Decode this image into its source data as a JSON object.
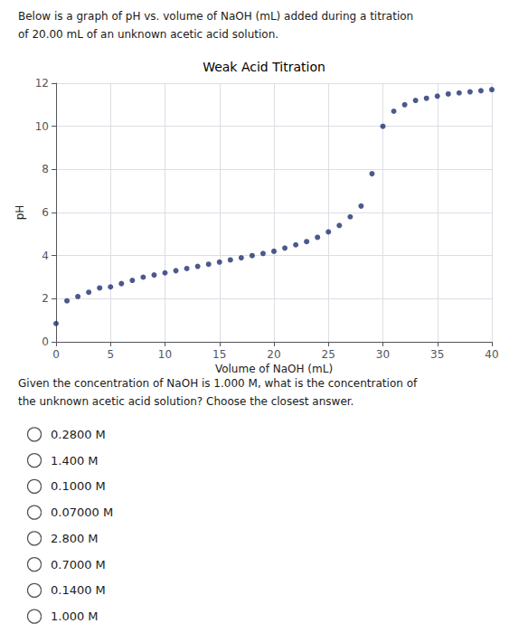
{
  "chart_data": {
    "type": "scatter",
    "header": [
      "Below is a graph of pH vs. volume of NaOH (mL) added during a titration",
      "of 20.00 mL of an unknown acetic acid solution."
    ],
    "title": "Weak Acid Titration",
    "xlabel": "Volume of NaOH (mL)",
    "ylabel": "pH",
    "x": [
      0,
      1,
      2,
      3,
      4,
      5,
      6,
      7,
      8,
      9,
      10,
      11,
      12,
      13,
      14,
      15,
      16,
      17,
      18,
      19,
      20,
      21,
      22,
      23,
      24,
      25,
      26,
      27,
      28,
      29,
      30,
      31,
      32,
      33,
      34,
      35,
      36,
      37,
      38,
      39,
      40
    ],
    "values": [
      0.85,
      1.9,
      2.1,
      2.3,
      2.5,
      2.55,
      2.7,
      2.85,
      3.0,
      3.1,
      3.2,
      3.3,
      3.4,
      3.5,
      3.6,
      3.7,
      3.8,
      3.9,
      4.0,
      4.1,
      4.2,
      4.35,
      4.5,
      4.65,
      4.85,
      5.1,
      5.4,
      5.8,
      6.3,
      7.8,
      10.0,
      10.7,
      11.0,
      11.2,
      11.3,
      11.4,
      11.5,
      11.55,
      11.6,
      11.65,
      11.7
    ],
    "color": "#1f3070",
    "xlim": [
      0,
      40
    ],
    "ylim": [
      0,
      12
    ],
    "xticks": [
      0,
      5,
      10,
      15,
      20,
      25,
      30,
      35,
      40
    ],
    "yticks": [
      0,
      2,
      4,
      6,
      8,
      10,
      12
    ],
    "grid": true,
    "question": [
      "Given the concentration of NaOH is 1.000 M, what is the concentration of",
      "the unknown acetic acid solution? Choose the closest answer."
    ],
    "choices": [
      "0.2800 M",
      "1.400 M",
      "0.1000 M",
      "0.07000 M",
      "2.800 M",
      "0.7000 M",
      "0.1400 M",
      "1.000 M"
    ]
  }
}
